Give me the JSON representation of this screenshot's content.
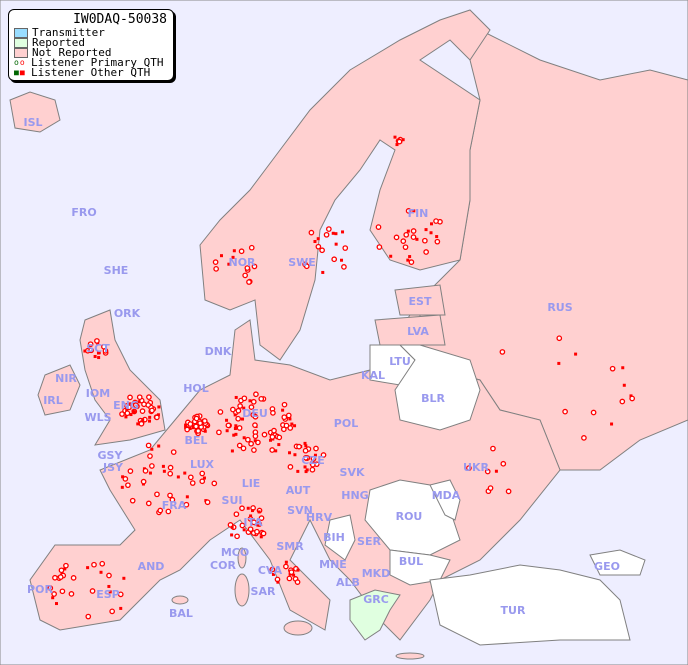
{
  "title": "IW0DAQ-50038",
  "legend": [
    {
      "label": "Transmitter",
      "color": "#99ddff"
    },
    {
      "label": "Reported",
      "color": "#e0ffe0"
    },
    {
      "label": "Not Reported",
      "color": "#ffd0d0"
    },
    {
      "label": "Listener Primary QTH",
      "marker": "ring"
    },
    {
      "label": "Listener Other QTH",
      "marker": "square"
    }
  ],
  "colors": {
    "sea": "#eeeeff",
    "not_reported": "#ffd0d0",
    "reported": "#e0ffe0",
    "no_data": "#ffffff",
    "label": "#9999ee",
    "marker": "#ff0000"
  },
  "countries": [
    "ISL",
    "FRO",
    "SHE",
    "ORK",
    "SCT",
    "NIR",
    "IRL",
    "IOM",
    "WLS",
    "ENG",
    "GSY",
    "JSY",
    "NOR",
    "SWE",
    "FIN",
    "DNK",
    "EST",
    "LVA",
    "LTU",
    "KAL",
    "RUS",
    "BLR",
    "POL",
    "HOL",
    "BEL",
    "LUX",
    "DEU",
    "CZE",
    "SVK",
    "UKR",
    "MDA",
    "FRA",
    "SUI",
    "LIE",
    "AUT",
    "HNG",
    "ROU",
    "SVN",
    "HRV",
    "BIH",
    "SER",
    "ITA",
    "SMR",
    "MCO",
    "COR",
    "CVA",
    "SAR",
    "MNE",
    "ALB",
    "MKD",
    "BUL",
    "GRC",
    "TUR",
    "GEO",
    "POR",
    "ESP",
    "AND",
    "BAL"
  ]
}
